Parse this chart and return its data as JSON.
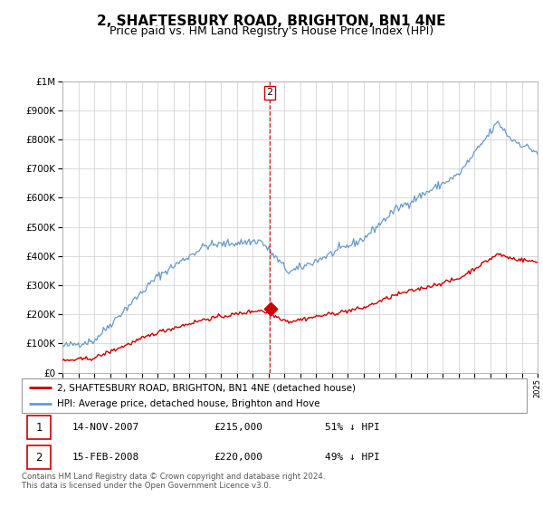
{
  "title": "2, SHAFTESBURY ROAD, BRIGHTON, BN1 4NE",
  "subtitle": "Price paid vs. HM Land Registry's House Price Index (HPI)",
  "title_fontsize": 11,
  "subtitle_fontsize": 9,
  "red_label": "2, SHAFTESBURY ROAD, BRIGHTON, BN1 4NE (detached house)",
  "blue_label": "HPI: Average price, detached house, Brighton and Hove",
  "sale1_label": "1",
  "sale1_date": "14-NOV-2007",
  "sale1_price": "£215,000",
  "sale1_hpi": "51% ↓ HPI",
  "sale2_label": "2",
  "sale2_date": "15-FEB-2008",
  "sale2_price": "£220,000",
  "sale2_hpi": "49% ↓ HPI",
  "sale1_year": 2007.87,
  "sale2_year": 2008.12,
  "sale1_value": 215000,
  "sale2_value": 220000,
  "vline_year": 2008.08,
  "ylim": [
    0,
    1000000
  ],
  "xlim_start": 1995,
  "xlim_end": 2025,
  "footnote": "Contains HM Land Registry data © Crown copyright and database right 2024.\nThis data is licensed under the Open Government Licence v3.0.",
  "red_color": "#cc0000",
  "blue_color": "#6699cc",
  "vline_color": "#cc0000",
  "background_color": "#ffffff",
  "grid_color": "#cccccc"
}
